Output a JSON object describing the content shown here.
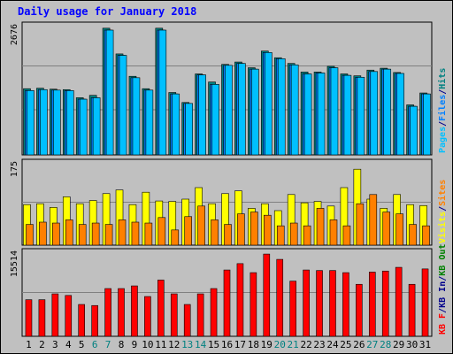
{
  "chart_data": {
    "type": "bar",
    "title": "Daily usage for January 2018",
    "categories": [
      "1",
      "2",
      "3",
      "4",
      "5",
      "6",
      "7",
      "8",
      "9",
      "10",
      "11",
      "12",
      "13",
      "14",
      "15",
      "16",
      "17",
      "18",
      "19",
      "20",
      "21",
      "22",
      "23",
      "24",
      "25",
      "26",
      "27",
      "28",
      "29",
      "30",
      "31"
    ],
    "weekend_days": [
      "6",
      "7",
      "13",
      "14",
      "20",
      "21",
      "27",
      "28"
    ],
    "panels": [
      {
        "id": "hits",
        "ymax_label": "2676",
        "ylim": [
          0,
          2676
        ],
        "legend": [
          {
            "label": "Pages",
            "color": "#00C0FF"
          },
          {
            "label": "/",
            "color": "#00008B"
          },
          {
            "label": "Files",
            "color": "#0080FF"
          },
          {
            "label": "/",
            "color": "#00008B"
          },
          {
            "label": "Hits",
            "color": "#008080"
          }
        ],
        "series": [
          {
            "name": "Hits",
            "color": "#008080",
            "values": [
              1390,
              1400,
              1380,
              1370,
              1200,
              1250,
              2660,
              2120,
              1650,
              1390,
              2660,
              1310,
              1100,
              1700,
              1530,
              1900,
              1950,
              1830,
              2180,
              2040,
              1920,
              1740,
              1740,
              1860,
              1700,
              1660,
              1780,
              1820,
              1730,
              1050,
              1300
            ]
          },
          {
            "name": "Files",
            "color": "#0080FF",
            "values": [
              1350,
              1370,
              1360,
              1350,
              1170,
              1200,
              2620,
              2090,
              1620,
              1360,
              2620,
              1280,
              1080,
              1680,
              1480,
              1880,
              1920,
              1800,
              2150,
              2020,
              1890,
              1700,
              1720,
              1830,
              1670,
              1630,
              1750,
              1800,
              1710,
              1020,
              1280
            ]
          },
          {
            "name": "Pages",
            "color": "#00C0FF",
            "values": [
              1350,
              1370,
              1360,
              1350,
              1170,
              1200,
              2620,
              2090,
              1620,
              1360,
              2620,
              1280,
              1080,
              1680,
              1480,
              1880,
              1920,
              1800,
              2150,
              2020,
              1890,
              1700,
              1720,
              1830,
              1670,
              1630,
              1750,
              1800,
              1710,
              1020,
              1280
            ]
          }
        ]
      },
      {
        "id": "visits",
        "ymax_label": "175",
        "ylim": [
          0,
          175
        ],
        "legend": [
          {
            "label": "Visits",
            "color": "#FFFF00"
          },
          {
            "label": "/",
            "color": "#00008B"
          },
          {
            "label": "Sites",
            "color": "#FF8000"
          }
        ],
        "series": [
          {
            "name": "Visits",
            "color": "#FFFF00",
            "values": [
              88,
              90,
              82,
              105,
              90,
              97,
              112,
              120,
              88,
              115,
              96,
              95,
              100,
              125,
              90,
              112,
              118,
              80,
              90,
              75,
              110,
              92,
              95,
              85,
              125,
              165,
              100,
              80,
              110,
              88,
              86
            ]
          },
          {
            "name": "Sites",
            "color": "#FF8000",
            "values": [
              45,
              50,
              48,
              55,
              45,
              48,
              45,
              55,
              50,
              48,
              60,
              33,
              62,
              85,
              55,
              45,
              68,
              72,
              65,
              42,
              48,
              42,
              80,
              55,
              42,
              90,
              110,
              72,
              68,
              45,
              42
            ]
          }
        ]
      },
      {
        "id": "kbytes",
        "ymax_label": "15514",
        "ylim": [
          0,
          15514
        ],
        "legend": [
          {
            "label": "KB F",
            "color": "#FF0000"
          },
          {
            "label": "/",
            "color": "#00008B"
          },
          {
            "label": "KB In",
            "color": "#00008B"
          },
          {
            "label": "/",
            "color": "#00008B"
          },
          {
            "label": "KB Out",
            "color": "#008000"
          }
        ],
        "series": [
          {
            "name": "KB F",
            "color": "#FF0000",
            "values": [
              6900,
              6900,
              8000,
              7700,
              6000,
              5800,
              9000,
              9000,
              9500,
              7500,
              10600,
              8000,
              6000,
              8000,
              9000,
              12500,
              13700,
              12000,
              15500,
              14500,
              10400,
              12500,
              12400,
              12400,
              12000,
              9800,
              12100,
              12300,
              13000,
              9800,
              12700
            ]
          }
        ]
      }
    ]
  }
}
